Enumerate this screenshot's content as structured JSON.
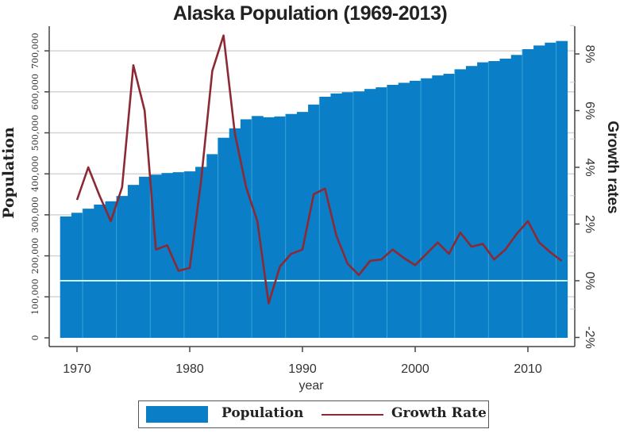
{
  "title": "Alaska Population (1969-2013)",
  "colors": {
    "bar": "#0a7ec6",
    "bar_divider": "#4fb3e0",
    "line": "#8b2a35",
    "zero_line": "#cff6ff",
    "grid": "#d4d4d4",
    "axis": "#444444"
  },
  "legend": {
    "population_label": "Population",
    "growth_label": "Growth Rate"
  },
  "chart_data": {
    "type": "bar",
    "title": "Alaska Population (1969-2013)",
    "xlabel": "year",
    "ylabel": "Population",
    "y2label": "Growth rates",
    "x_ticks": [
      "1970",
      "1980",
      "1990",
      "2000",
      "2010"
    ],
    "y_ticks": [
      "0",
      "100,000",
      "200,000",
      "300,000",
      "400,000",
      "500,000",
      "600,000",
      "700,000"
    ],
    "y2_ticks": [
      "-2%",
      "0%",
      "2%",
      "4%",
      "6%",
      "8%"
    ],
    "ylim": [
      0,
      760000
    ],
    "y2lim": [
      -2.0,
      8.8
    ],
    "grid": true,
    "legend_position": "bottom",
    "categories": [
      1969,
      1970,
      1971,
      1972,
      1973,
      1974,
      1975,
      1976,
      1977,
      1978,
      1979,
      1980,
      1981,
      1982,
      1983,
      1984,
      1985,
      1986,
      1987,
      1988,
      1989,
      1990,
      1991,
      1992,
      1993,
      1994,
      1995,
      1996,
      1997,
      1998,
      1999,
      2000,
      2001,
      2002,
      2003,
      2004,
      2005,
      2006,
      2007,
      2008,
      2009,
      2010,
      2011,
      2012,
      2013
    ],
    "series": [
      {
        "name": "Population",
        "type": "bar",
        "axis": "left",
        "values": [
          296000,
          305000,
          315000,
          325000,
          333000,
          346000,
          373000,
          393000,
          398000,
          402000,
          404000,
          406000,
          417000,
          448000,
          488000,
          511000,
          533000,
          541000,
          538000,
          540000,
          546000,
          551000,
          569000,
          588000,
          596000,
          599000,
          601000,
          607000,
          611000,
          617000,
          622000,
          627000,
          633000,
          640000,
          644000,
          655000,
          663000,
          672000,
          675000,
          681000,
          690000,
          704000,
          713000,
          720000,
          724000
        ]
      },
      {
        "name": "Growth Rate",
        "type": "line",
        "axis": "right",
        "unit": "%",
        "values": [
          null,
          2.85,
          4.0,
          3.0,
          2.1,
          3.3,
          7.6,
          6.0,
          1.1,
          1.25,
          0.35,
          0.45,
          3.5,
          7.4,
          8.65,
          5.2,
          3.3,
          2.1,
          -0.8,
          0.5,
          0.95,
          1.1,
          3.05,
          3.25,
          1.6,
          0.6,
          0.2,
          0.7,
          0.75,
          1.1,
          0.8,
          0.55,
          0.95,
          1.35,
          0.95,
          1.7,
          1.2,
          1.3,
          0.75,
          1.1,
          1.65,
          2.1,
          1.35,
          1.0,
          0.7
        ]
      }
    ]
  }
}
